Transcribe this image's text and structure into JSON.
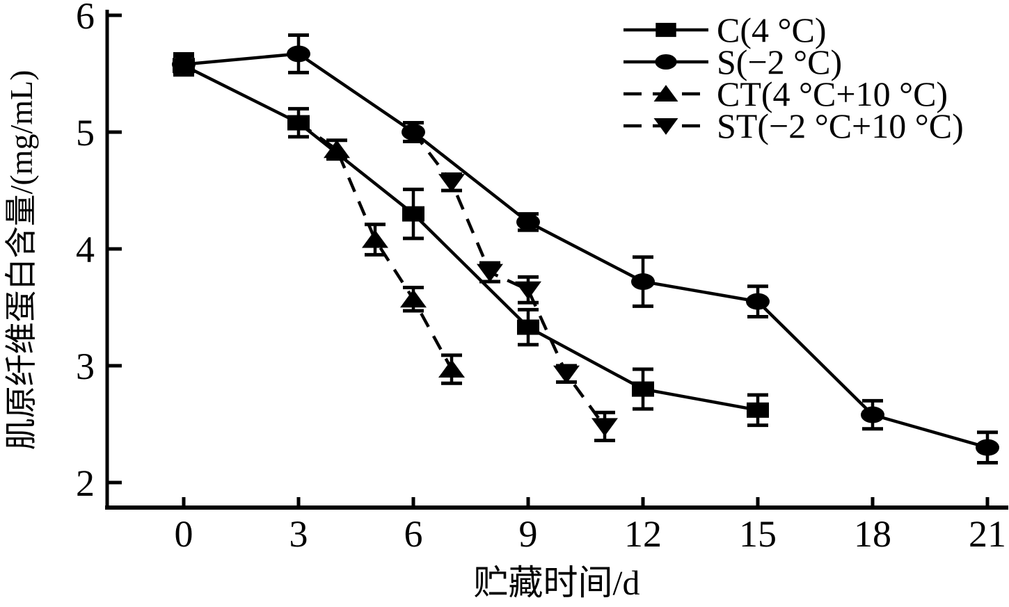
{
  "figure": {
    "background": "#ffffff",
    "ink_color": "#000000"
  },
  "chart_data": {
    "type": "line",
    "title": "",
    "xlabel": "贮藏时间/d",
    "ylabel": "肌原纤维蛋白含量/(mg/mL)",
    "x_ticks": [
      0,
      3,
      6,
      9,
      12,
      15,
      18,
      21
    ],
    "y_ticks": [
      2,
      3,
      4,
      5,
      6
    ],
    "xlim": [
      -2,
      21.5
    ],
    "ylim": [
      1.8,
      6.05
    ],
    "grid": false,
    "error_bars": true,
    "legend_position": "top-right",
    "series": [
      {
        "name": "C",
        "label": "C(4 °C)",
        "marker": "square",
        "line_style": "solid",
        "x": [
          0,
          3,
          6,
          9,
          12,
          15
        ],
        "y": [
          5.57,
          5.08,
          4.3,
          3.33,
          2.8,
          2.62
        ],
        "err": [
          0.08,
          0.12,
          0.21,
          0.15,
          0.17,
          0.13
        ]
      },
      {
        "name": "S",
        "label": "S(−2 °C)",
        "marker": "circle",
        "line_style": "solid",
        "x": [
          0,
          3,
          6,
          9,
          12,
          15,
          18,
          21
        ],
        "y": [
          5.58,
          5.67,
          5.0,
          4.23,
          3.72,
          3.55,
          2.58,
          2.3
        ],
        "err": [
          0.09,
          0.16,
          0.08,
          0.07,
          0.21,
          0.13,
          0.12,
          0.13
        ]
      },
      {
        "name": "CT",
        "label": "CT(4 °C+10 °C)",
        "marker": "triangle-up",
        "line_style": "dashed",
        "branch_from": {
          "series": "C",
          "x": 3,
          "y": 5.08
        },
        "x": [
          4,
          5,
          6,
          7
        ],
        "y": [
          4.85,
          4.08,
          3.57,
          2.97
        ],
        "err": [
          0.08,
          0.13,
          0.1,
          0.12
        ]
      },
      {
        "name": "ST",
        "label": "ST(−2 °C+10 °C)",
        "marker": "triangle-down",
        "line_style": "dashed",
        "branch_from": {
          "series": "S",
          "x": 6,
          "y": 5.0
        },
        "x": [
          7,
          8,
          9,
          10,
          11
        ],
        "y": [
          4.57,
          3.8,
          3.65,
          2.93,
          2.48
        ],
        "err": [
          0.07,
          0.08,
          0.11,
          0.07,
          0.12
        ]
      }
    ]
  }
}
